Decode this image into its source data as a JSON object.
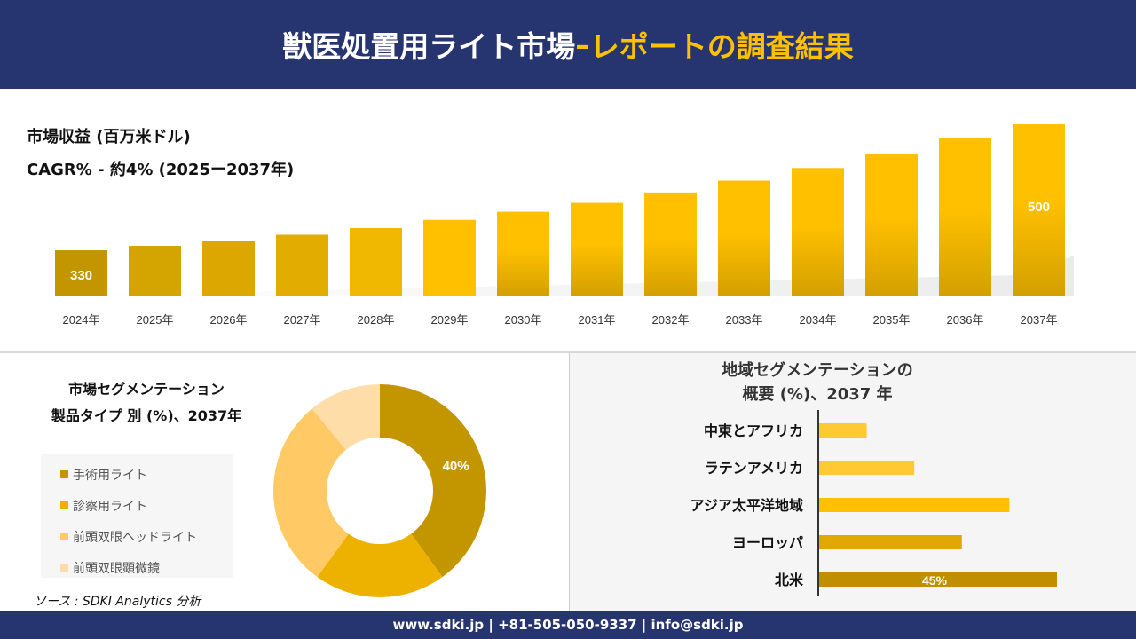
{
  "header": {
    "title_main": "獣医処置用ライト市場",
    "title_sep": "–",
    "title_accent": "レポートの調査結果"
  },
  "colors": {
    "navy": "#263470",
    "gold": "#FFC000",
    "dark_gold": "#C39600"
  },
  "chart_data": [
    {
      "type": "bar",
      "title": "市場収益 (百万米ドル)",
      "subtitle": "CAGR% - 約4% (2025ー2037年)",
      "categories": [
        "2024年",
        "2025年",
        "2026年",
        "2027年",
        "2028年",
        "2029年",
        "2030年",
        "2031年",
        "2032年",
        "2033年",
        "2034年",
        "2035年",
        "2036年",
        "2037年"
      ],
      "values": [
        330,
        336,
        343,
        351,
        360,
        371,
        382,
        394,
        408,
        424,
        441,
        460,
        481,
        500
      ],
      "data_labels": {
        "0": "330",
        "13": "500"
      },
      "ylim": [
        269,
        500
      ],
      "grid": false
    },
    {
      "type": "pie",
      "variant": "donut",
      "title": "市場セグメンテーション",
      "subtitle": "製品タイプ 別 (%)、2037年",
      "labels": [
        "手術用ライト",
        "診察用ライト",
        "前頭双眼ヘッドライト",
        "前頭双眼顕微鏡"
      ],
      "values": [
        40,
        20,
        29,
        11
      ],
      "colors": [
        "#C39600",
        "#EDB200",
        "#FFC966",
        "#FFDDA8"
      ],
      "data_labels": {
        "0": "40%"
      },
      "legend": "left"
    },
    {
      "type": "bar",
      "orientation": "horizontal",
      "title": "地域セグメンテーションの",
      "subtitle": "概要 (%)、2037 年",
      "categories": [
        "中東とアフリカ",
        "ラテンアメリカ",
        "アジア太平洋地域",
        "ヨーロッパ",
        "北米"
      ],
      "values": [
        9,
        18,
        36,
        27,
        45
      ],
      "colors": [
        "#FFC933",
        "#FFC933",
        "#FFC000",
        "#E0A800",
        "#BF8F00"
      ],
      "data_labels": {
        "4": "45%"
      }
    }
  ],
  "source": "ソース : SDKI Analytics 分析",
  "footer": "www.sdki.jp | +81-505-050-9337 | info@sdki.jp"
}
